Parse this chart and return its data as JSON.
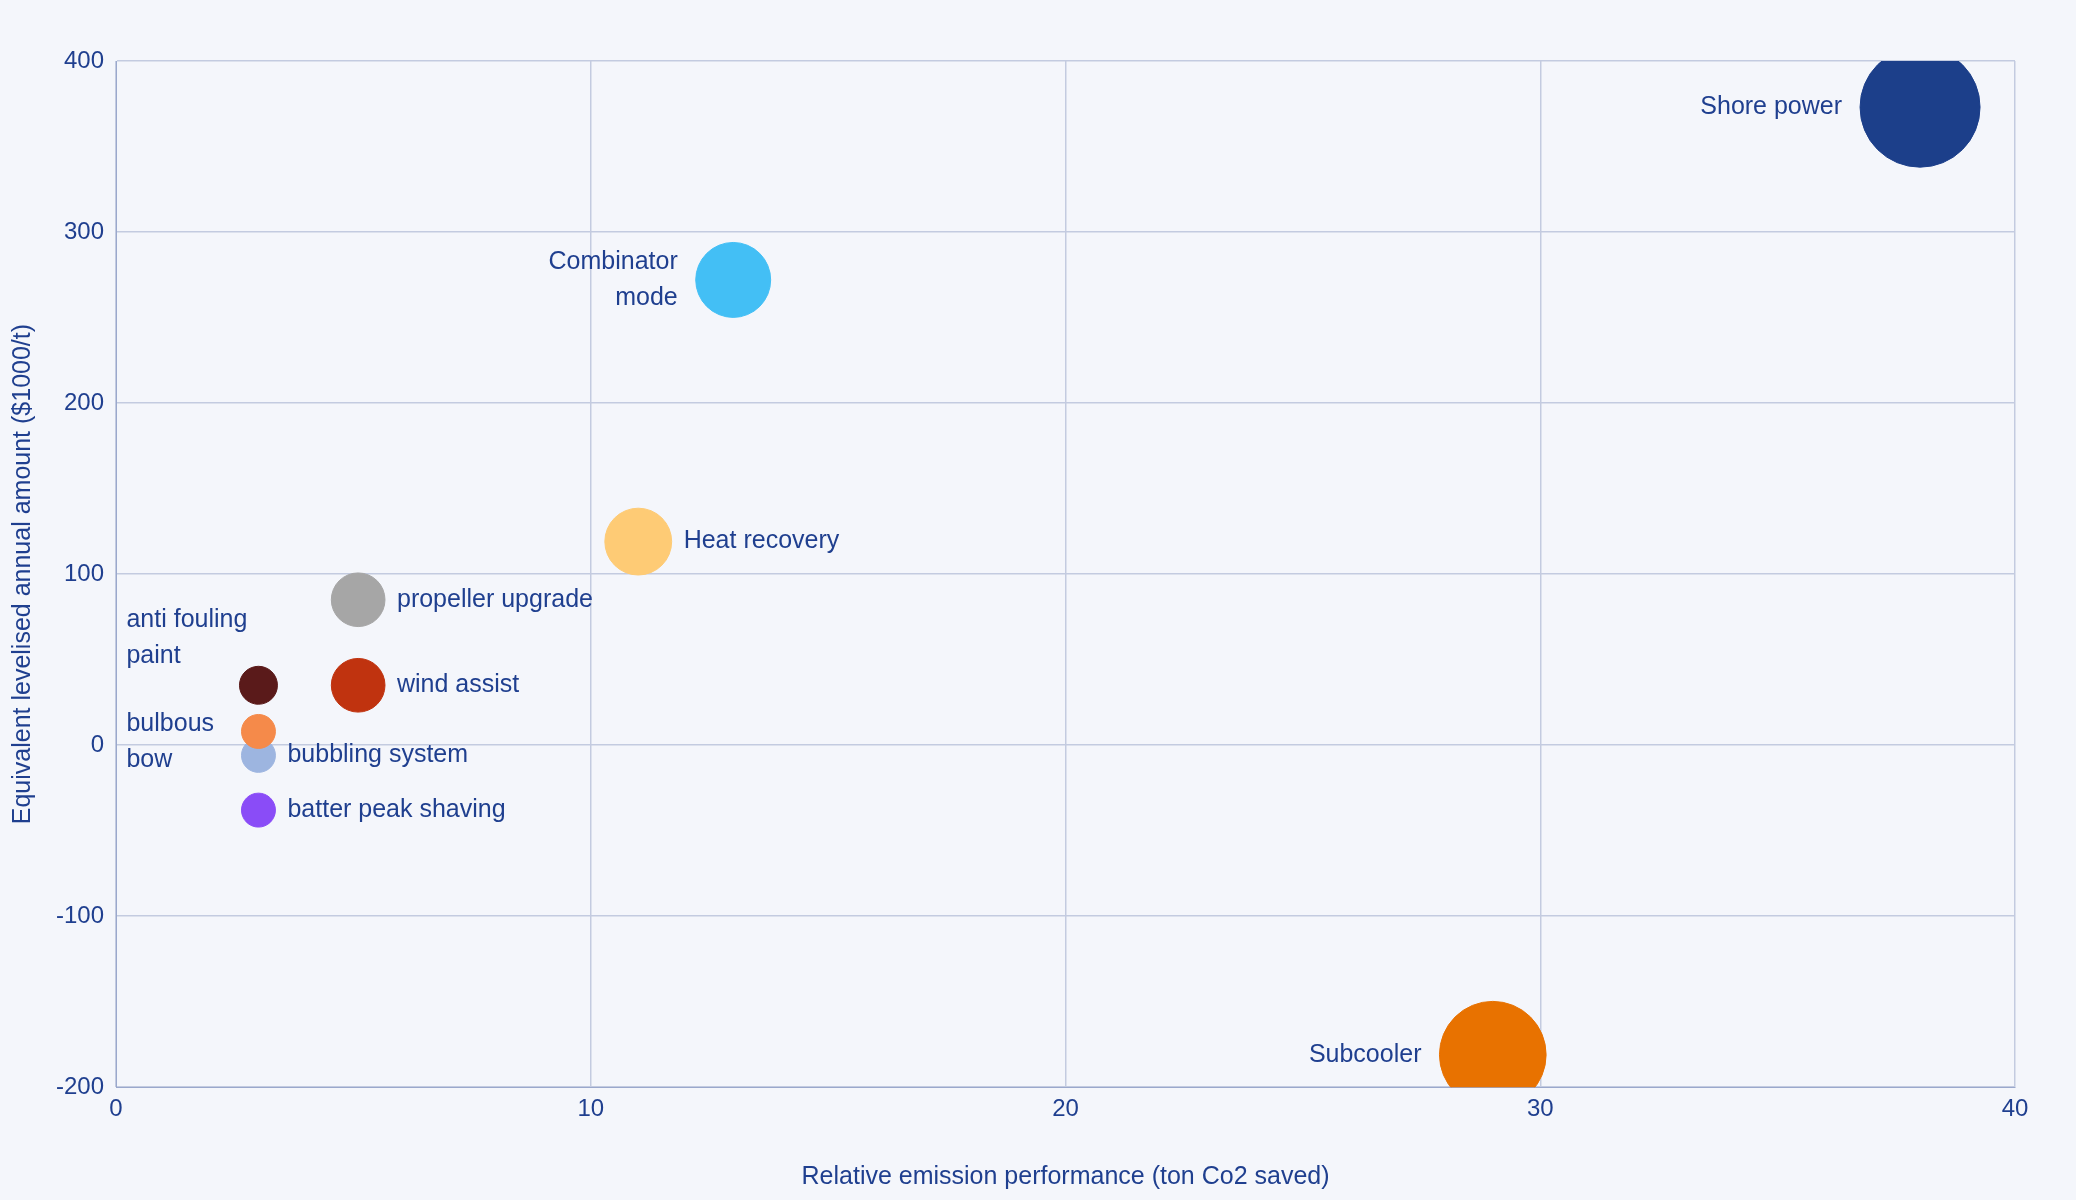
{
  "chart_data": {
    "type": "bubble",
    "xlabel": "Relative emission performance (ton Co2 saved)",
    "ylabel": "Equivalent levelised annual amount ($1000/t)",
    "xlim": [
      0,
      40
    ],
    "xticks": [
      0,
      10,
      20,
      30,
      40
    ],
    "ylim": [
      -200,
      400
    ],
    "yticks": [
      -200,
      -100,
      0,
      100,
      200,
      300,
      400
    ],
    "grid": true,
    "legend": false,
    "series": [
      {
        "name": "Shore power",
        "color": "#1c3f8a",
        "x": [
          38
        ],
        "values": [
          373
        ],
        "sizes": [
          1
        ]
      },
      {
        "name": "Combinator mode",
        "color": "#43bff5",
        "x": [
          13
        ],
        "values": [
          272
        ],
        "sizes": [
          0.39
        ]
      },
      {
        "name": "Heat recovery",
        "color": "#fecb75",
        "x": [
          11
        ],
        "values": [
          119
        ],
        "sizes": [
          0.31
        ]
      },
      {
        "name": "propeller upgrade",
        "color": "#a6a6a6",
        "x": [
          5.1
        ],
        "values": [
          85
        ],
        "sizes": [
          0.2
        ]
      },
      {
        "name": "anti fouling paint",
        "color": "#5a1a1a",
        "x": [
          3
        ],
        "values": [
          35
        ],
        "sizes": [
          0.1
        ]
      },
      {
        "name": "wind assist",
        "color": "#c0330f",
        "x": [
          5.1
        ],
        "values": [
          35
        ],
        "sizes": [
          0.2
        ]
      },
      {
        "name": "bulbous bow",
        "color": "#f58a4a",
        "x": [
          3
        ],
        "values": [
          8
        ],
        "sizes": [
          0.08
        ]
      },
      {
        "name": "bubbling system",
        "color": "#9db5e0",
        "x": [
          3
        ],
        "values": [
          -6
        ],
        "sizes": [
          0.08
        ]
      },
      {
        "name": "batter peak shaving",
        "color": "#8a4cf7",
        "x": [
          3
        ],
        "values": [
          -38
        ],
        "sizes": [
          0.08
        ]
      },
      {
        "name": "Subcooler",
        "color": "#e87200",
        "x": [
          29
        ],
        "values": [
          -181
        ],
        "sizes": [
          0.79
        ]
      }
    ]
  }
}
